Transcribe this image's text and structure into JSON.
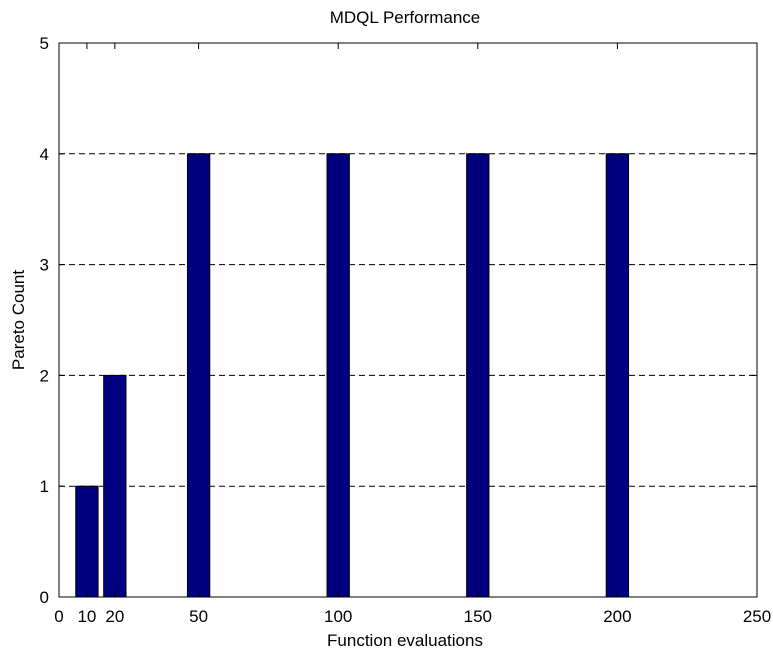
{
  "chart_data": {
    "type": "bar",
    "title": "MDQL Performance",
    "xlabel": "Function evaluations",
    "ylabel": "Pareto Count",
    "x": [
      10,
      20,
      50,
      100,
      150,
      200
    ],
    "values": [
      1,
      2,
      4,
      4,
      4,
      4
    ],
    "xlim": [
      0,
      250
    ],
    "ylim": [
      0,
      5
    ],
    "xticks": [
      0,
      10,
      20,
      50,
      100,
      150,
      200,
      250
    ],
    "yticks": [
      0,
      1,
      2,
      3,
      4,
      5
    ],
    "bar_color": "#000080",
    "bar_width": 8,
    "grid": "horizontal dashed",
    "legend": "none"
  }
}
